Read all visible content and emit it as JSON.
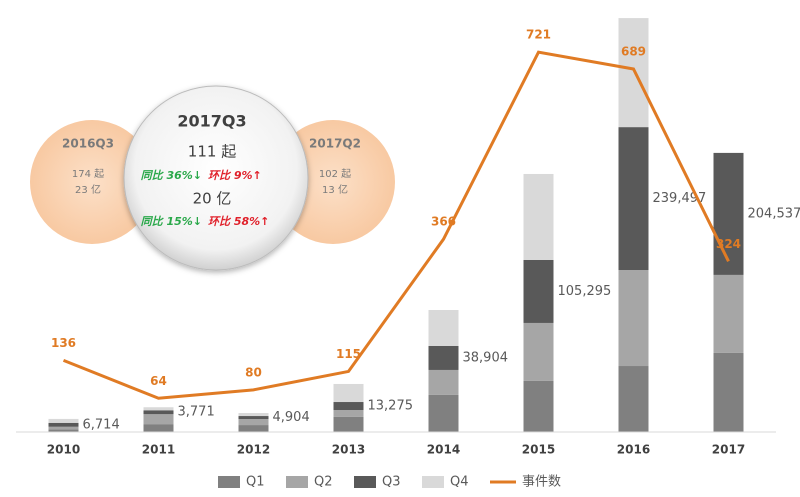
{
  "chart_data": {
    "type": "bar",
    "categories": [
      "2010",
      "2011",
      "2012",
      "2013",
      "2014",
      "2015",
      "2016",
      "2017"
    ],
    "series": [
      {
        "name": "Q1",
        "color": "#808080",
        "values": [
          2000,
          6000,
          5300,
          11500,
          28300,
          39000,
          50400,
          60400
        ]
      },
      {
        "name": "Q2",
        "color": "#a6a6a6",
        "values": [
          2000,
          7600,
          4600,
          5300,
          19100,
          44300,
          73300,
          59600
        ]
      },
      {
        "name": "Q3",
        "color": "#595959",
        "values": [
          3000,
          3000,
          2300,
          6100,
          18300,
          48100,
          109200,
          93200
        ]
      },
      {
        "name": "Q4",
        "color": "#d9d9d9",
        "values": [
          3000,
          2300,
          2300,
          13800,
          27500,
          65700,
          83300,
          null
        ]
      },
      {
        "name": "事件数",
        "color": "#e07b24",
        "type": "line",
        "axis": "y2",
        "values": [
          136,
          64,
          80,
          115,
          366,
          721,
          689,
          324
        ]
      }
    ],
    "totals": {
      "values": [
        6714,
        3771,
        4904,
        13275,
        38904,
        105295,
        239497,
        204537
      ],
      "value_labels": [
        "6,714",
        "3,771",
        "4,904",
        "13,275",
        "38,904",
        "105,295",
        "239,497",
        "204,537"
      ]
    },
    "ylim": [
      0,
      330000
    ],
    "y2lim": [
      0,
      820
    ],
    "legend": "bottom"
  },
  "inset": {
    "left": {
      "title": "2016Q3",
      "count": "174 起",
      "amount": "23 亿"
    },
    "center": {
      "title": "2017Q3",
      "count": "111 起",
      "count_yoy": "同比 36%↓",
      "count_qoq": "环比 9%↑",
      "amount": "20 亿",
      "amount_yoy": "同比 15%↓",
      "amount_qoq": "环比 58%↑"
    },
    "right": {
      "title": "2017Q2",
      "count": "102 起",
      "amount": "13 亿"
    }
  }
}
